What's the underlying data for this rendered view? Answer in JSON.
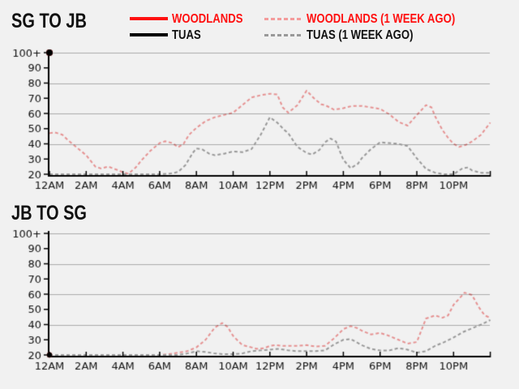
{
  "page": {
    "background": "#f1f1f1",
    "gridline_color": "#ababab",
    "axis_color": "#000000",
    "accent_red": "#ff1010",
    "accent_pink": "#f49b9b",
    "accent_gray": "#999999"
  },
  "legend": {
    "items": [
      {
        "label": "WOODLANDS",
        "color": "#ff1010",
        "text_color": "#ff1010",
        "style": "solid"
      },
      {
        "label": "TUAS",
        "color": "#000000",
        "text_color": "#111111",
        "style": "solid"
      },
      {
        "label": "WOODLANDS (1 WEEK AGO)",
        "color": "#f49b9b",
        "text_color": "#ff1010",
        "style": "dashed"
      },
      {
        "label": "TUAS (1 WEEK AGO)",
        "color": "#999999",
        "text_color": "#111111",
        "style": "dashed"
      }
    ]
  },
  "chart_data": [
    {
      "type": "line",
      "title": "SG TO JB",
      "x_axis": {
        "tick_labels": [
          "12AM",
          "2AM",
          "4AM",
          "6AM",
          "8AM",
          "10AM",
          "12PM",
          "2PM",
          "4PM",
          "6PM",
          "8PM",
          "10PM"
        ],
        "min_hour": 0,
        "max_hour": 24,
        "tick_interval_hours": 2
      },
      "y_axis": {
        "tick_labels": [
          "100+",
          "90",
          "80",
          "70",
          "60",
          "50",
          "40",
          "30",
          "20"
        ],
        "min": 20,
        "max": 100,
        "gridline_values": [
          40,
          60,
          80,
          100
        ]
      },
      "series": [
        {
          "name": "WOODLANDS",
          "color": "#ff1010",
          "style": "solid",
          "marker": "dot",
          "points": [
            [
              0,
              100
            ]
          ]
        },
        {
          "name": "TUAS",
          "color": "#000000",
          "style": "solid",
          "marker": "dot",
          "points": [
            [
              0,
              100
            ]
          ]
        },
        {
          "name": "WOODLANDS (1 WEEK AGO)",
          "color": "#f49b9b",
          "style": "dashed",
          "points": [
            [
              0,
              47
            ],
            [
              0.3,
              47.5
            ],
            [
              0.7,
              46
            ],
            [
              1,
              42.5
            ],
            [
              1.5,
              37.5
            ],
            [
              2,
              32.5
            ],
            [
              2.5,
              25
            ],
            [
              2.8,
              23.8
            ],
            [
              3.2,
              25
            ],
            [
              3.7,
              22.8
            ],
            [
              4,
              21.3
            ],
            [
              4.3,
              20.3
            ],
            [
              4.7,
              24.5
            ],
            [
              5,
              29
            ],
            [
              5.5,
              35.5
            ],
            [
              6,
              40.5
            ],
            [
              6.3,
              41.7
            ],
            [
              6.7,
              40.5
            ],
            [
              7,
              37.8
            ],
            [
              7.3,
              40
            ],
            [
              7.6,
              46
            ],
            [
              8,
              50.5
            ],
            [
              8.5,
              55
            ],
            [
              9,
              57.5
            ],
            [
              9.5,
              59
            ],
            [
              10,
              60.5
            ],
            [
              10.5,
              65.5
            ],
            [
              11,
              70.5
            ],
            [
              11.5,
              72
            ],
            [
              12,
              73
            ],
            [
              12.4,
              72.5
            ],
            [
              12.7,
              64
            ],
            [
              13,
              60.5
            ],
            [
              13.5,
              65.5
            ],
            [
              14,
              75
            ],
            [
              14.4,
              70
            ],
            [
              14.8,
              66
            ],
            [
              15,
              65.5
            ],
            [
              15.5,
              62.5
            ],
            [
              16,
              63.5
            ],
            [
              16.5,
              65
            ],
            [
              17,
              65
            ],
            [
              17.5,
              64
            ],
            [
              18,
              63
            ],
            [
              18.5,
              59.5
            ],
            [
              19,
              54.5
            ],
            [
              19.5,
              52
            ],
            [
              20,
              59
            ],
            [
              20.5,
              65.5
            ],
            [
              20.8,
              64
            ],
            [
              21,
              58
            ],
            [
              21.4,
              49
            ],
            [
              21.7,
              44
            ],
            [
              22,
              40
            ],
            [
              22.3,
              38
            ],
            [
              22.7,
              39.5
            ],
            [
              23,
              41.5
            ],
            [
              23.5,
              46
            ],
            [
              24,
              54
            ]
          ]
        },
        {
          "name": "TUAS (1 WEEK AGO)",
          "color": "#999999",
          "style": "dashed",
          "points": [
            [
              0,
              20
            ],
            [
              1,
              20
            ],
            [
              2,
              20
            ],
            [
              3,
              20
            ],
            [
              4,
              20
            ],
            [
              5,
              20
            ],
            [
              6,
              20
            ],
            [
              6.6,
              20.5
            ],
            [
              7,
              21.5
            ],
            [
              7.4,
              26
            ],
            [
              7.8,
              34
            ],
            [
              8,
              37
            ],
            [
              8.3,
              36.5
            ],
            [
              8.7,
              33.5
            ],
            [
              9,
              32.5
            ],
            [
              9.5,
              33.5
            ],
            [
              10,
              35
            ],
            [
              10.5,
              34.5
            ],
            [
              11,
              36.5
            ],
            [
              11.5,
              46
            ],
            [
              12,
              57.5
            ],
            [
              12.4,
              54
            ],
            [
              12.8,
              49
            ],
            [
              13,
              47
            ],
            [
              13.5,
              38
            ],
            [
              14,
              34
            ],
            [
              14.3,
              33
            ],
            [
              14.7,
              36
            ],
            [
              15,
              41
            ],
            [
              15.3,
              43.5
            ],
            [
              15.6,
              41.5
            ],
            [
              16,
              29.5
            ],
            [
              16.4,
              24
            ],
            [
              16.8,
              27
            ],
            [
              17,
              30.5
            ],
            [
              17.5,
              36.5
            ],
            [
              18,
              41
            ],
            [
              18.5,
              40.5
            ],
            [
              19,
              40
            ],
            [
              19.5,
              38.5
            ],
            [
              20,
              30.5
            ],
            [
              20.5,
              23.5
            ],
            [
              21,
              21
            ],
            [
              21.5,
              20
            ],
            [
              22,
              20
            ],
            [
              22.5,
              24
            ],
            [
              22.8,
              24.5
            ],
            [
              23,
              22.5
            ],
            [
              23.5,
              21
            ],
            [
              24,
              21
            ]
          ]
        }
      ]
    },
    {
      "type": "line",
      "title": "JB TO SG",
      "x_axis": {
        "tick_labels": [
          "12AM",
          "2AM",
          "4AM",
          "6AM",
          "8AM",
          "10AM",
          "12PM",
          "2PM",
          "4PM",
          "6PM",
          "8PM",
          "10PM"
        ],
        "min_hour": 0,
        "max_hour": 24,
        "tick_interval_hours": 2
      },
      "y_axis": {
        "tick_labels": [
          "100+",
          "90",
          "80",
          "70",
          "60",
          "50",
          "40",
          "30",
          "20"
        ],
        "min": 20,
        "max": 100,
        "gridline_values": [
          40,
          60,
          80,
          100
        ]
      },
      "series": [
        {
          "name": "WOODLANDS",
          "color": "#ff1010",
          "style": "solid",
          "marker": "dot",
          "points": [
            [
              0,
              20
            ]
          ]
        },
        {
          "name": "TUAS",
          "color": "#000000",
          "style": "solid",
          "marker": "dot",
          "points": [
            [
              0,
              20
            ]
          ]
        },
        {
          "name": "WOODLANDS (1 WEEK AGO)",
          "color": "#f49b9b",
          "style": "dashed",
          "points": [
            [
              0,
              20
            ],
            [
              1,
              20
            ],
            [
              2,
              20
            ],
            [
              3,
              20
            ],
            [
              4,
              20
            ],
            [
              5,
              20
            ],
            [
              6,
              20
            ],
            [
              6.5,
              20.5
            ],
            [
              7,
              21.5
            ],
            [
              7.5,
              22.5
            ],
            [
              8,
              25
            ],
            [
              8.5,
              30
            ],
            [
              9,
              38
            ],
            [
              9.4,
              41
            ],
            [
              9.7,
              38.5
            ],
            [
              10,
              32.5
            ],
            [
              10.5,
              26.5
            ],
            [
              11,
              25
            ],
            [
              11.3,
              24
            ],
            [
              11.7,
              24.5
            ],
            [
              12,
              26
            ],
            [
              12.3,
              26.5
            ],
            [
              12.7,
              26
            ],
            [
              13,
              26
            ],
            [
              13.5,
              26
            ],
            [
              14,
              26.5
            ],
            [
              14.5,
              25.5
            ],
            [
              15,
              26
            ],
            [
              15.5,
              31
            ],
            [
              16,
              37
            ],
            [
              16.4,
              39
            ],
            [
              16.8,
              37.5
            ],
            [
              17,
              36
            ],
            [
              17.5,
              33.5
            ],
            [
              18,
              34.5
            ],
            [
              18.4,
              33
            ],
            [
              19,
              30
            ],
            [
              19.5,
              27.5
            ],
            [
              20,
              28.5
            ],
            [
              20.5,
              44
            ],
            [
              21,
              46
            ],
            [
              21.4,
              44.5
            ],
            [
              21.7,
              46
            ],
            [
              22,
              53
            ],
            [
              22.6,
              61
            ],
            [
              23,
              59.5
            ],
            [
              23.4,
              51
            ],
            [
              23.7,
              46
            ],
            [
              24,
              44.5
            ]
          ]
        },
        {
          "name": "TUAS (1 WEEK AGO)",
          "color": "#999999",
          "style": "dashed",
          "points": [
            [
              0,
              20
            ],
            [
              1,
              20
            ],
            [
              2,
              20
            ],
            [
              3,
              20
            ],
            [
              4,
              20
            ],
            [
              5,
              20
            ],
            [
              6,
              20
            ],
            [
              7,
              20
            ],
            [
              7.5,
              21
            ],
            [
              8,
              22.5
            ],
            [
              8.5,
              22
            ],
            [
              9,
              21
            ],
            [
              9.5,
              20.5
            ],
            [
              10,
              20.5
            ],
            [
              10.5,
              21
            ],
            [
              11,
              22.5
            ],
            [
              11.5,
              23
            ],
            [
              12,
              23.5
            ],
            [
              12.5,
              24
            ],
            [
              13,
              23
            ],
            [
              13.5,
              22.5
            ],
            [
              14,
              22.5
            ],
            [
              14.5,
              22.5
            ],
            [
              15,
              23
            ],
            [
              15.5,
              27
            ],
            [
              16,
              30
            ],
            [
              16.4,
              30.5
            ],
            [
              17,
              26.5
            ],
            [
              17.5,
              24
            ],
            [
              18,
              23
            ],
            [
              18.5,
              23
            ],
            [
              19,
              24.5
            ],
            [
              19.5,
              23.5
            ],
            [
              20,
              21.5
            ],
            [
              20.5,
              22.5
            ],
            [
              21,
              26
            ],
            [
              21.5,
              28.5
            ],
            [
              22,
              31.5
            ],
            [
              22.5,
              35
            ],
            [
              23,
              37.5
            ],
            [
              23.5,
              40
            ],
            [
              24,
              43
            ]
          ]
        }
      ]
    }
  ]
}
